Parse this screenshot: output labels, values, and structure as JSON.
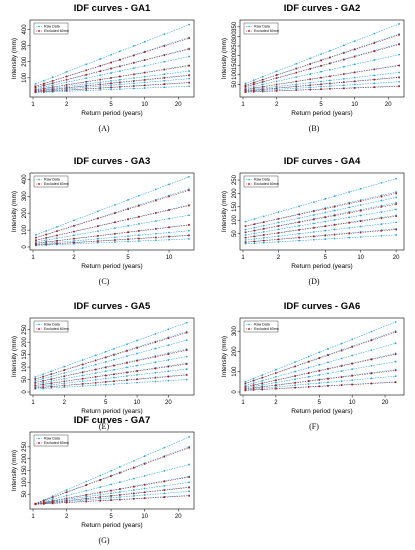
{
  "colors": {
    "raw": "#29a3e0",
    "excluded": "#b01818",
    "frame": "#000000"
  },
  "legend": [
    "Raw Data",
    "Excluded 60mn"
  ],
  "chart_data": [
    {
      "type": "line",
      "title": "IDF curves - GA1",
      "caption": "(A)",
      "xlabel": "Return period (years)",
      "ylabel": "Intensity (mm)",
      "x_scale": "log",
      "xlim": [
        1,
        26
      ],
      "ylim": [
        0,
        440
      ],
      "x_ticks": [
        1,
        2,
        5,
        10,
        20
      ],
      "y_ticks": [
        100,
        200,
        300,
        400
      ],
      "x": [
        1.05,
        1.25,
        1.5,
        2,
        3,
        4,
        5,
        6,
        8,
        10,
        15,
        25
      ],
      "series": [
        {
          "name": "Raw Data",
          "start": 62,
          "end": 430
        },
        {
          "name": "Raw Data",
          "start": 48,
          "end": 350
        },
        {
          "name": "Raw Data",
          "start": 40,
          "end": 282
        },
        {
          "name": "Raw Data",
          "start": 32,
          "end": 232
        },
        {
          "name": "Raw Data",
          "start": 26,
          "end": 178
        },
        {
          "name": "Raw Data",
          "start": 22,
          "end": 142
        },
        {
          "name": "Raw Data",
          "start": 18,
          "end": 118
        },
        {
          "name": "Raw Data",
          "start": 15,
          "end": 95
        },
        {
          "name": "Raw Data",
          "start": 12,
          "end": 72
        },
        {
          "name": "Raw Data",
          "start": 9,
          "end": 48
        },
        {
          "name": "Excluded 60mn",
          "start": 48,
          "end": 345
        },
        {
          "name": "Excluded 60mn",
          "start": 40,
          "end": 278
        },
        {
          "name": "Excluded 60mn",
          "start": 26,
          "end": 175
        },
        {
          "name": "Excluded 60mn",
          "start": 18,
          "end": 115
        },
        {
          "name": "Excluded 60mn",
          "start": 12,
          "end": 70
        }
      ]
    },
    {
      "type": "line",
      "title": "IDF curves - GA2",
      "caption": "(B)",
      "xlabel": "Return period (years)",
      "ylabel": "Intensity (mm)",
      "x_scale": "log",
      "xlim": [
        1,
        26
      ],
      "ylim": [
        0,
        370
      ],
      "x_ticks": [
        1,
        2,
        5,
        10,
        20
      ],
      "y_ticks": [
        50,
        100,
        150,
        200,
        250,
        300,
        350
      ],
      "x": [
        1.05,
        1.25,
        1.5,
        2,
        3,
        4,
        5,
        6,
        8,
        10,
        15,
        25
      ],
      "series": [
        {
          "name": "Raw Data",
          "start": 55,
          "end": 365
        },
        {
          "name": "Raw Data",
          "start": 45,
          "end": 312
        },
        {
          "name": "Raw Data",
          "start": 38,
          "end": 262
        },
        {
          "name": "Raw Data",
          "start": 30,
          "end": 205
        },
        {
          "name": "Raw Data",
          "start": 24,
          "end": 150
        },
        {
          "name": "Raw Data",
          "start": 20,
          "end": 112
        },
        {
          "name": "Raw Data",
          "start": 16,
          "end": 88
        },
        {
          "name": "Raw Data",
          "start": 13,
          "end": 64
        },
        {
          "name": "Raw Data",
          "start": 10,
          "end": 42
        },
        {
          "name": "Excluded 60mn",
          "start": 45,
          "end": 308
        },
        {
          "name": "Excluded 60mn",
          "start": 38,
          "end": 258
        },
        {
          "name": "Excluded 60mn",
          "start": 24,
          "end": 148
        },
        {
          "name": "Excluded 60mn",
          "start": 16,
          "end": 86
        },
        {
          "name": "Excluded 60mn",
          "start": 10,
          "end": 40
        }
      ]
    },
    {
      "type": "line",
      "title": "IDF curves - GA3",
      "caption": "(C)",
      "xlabel": "Return period (years)",
      "ylabel": "Intensity (mm)",
      "x_scale": "log",
      "xlim": [
        1,
        14.5
      ],
      "ylim": [
        0,
        420
      ],
      "x_ticks": [
        1,
        2,
        5,
        10
      ],
      "y_ticks": [
        0,
        100,
        200,
        300,
        400
      ],
      "x": [
        1.05,
        1.25,
        1.5,
        2,
        3,
        4,
        5,
        6,
        8,
        10,
        14
      ],
      "series": [
        {
          "name": "Raw Data",
          "start": 72,
          "end": 415
        },
        {
          "name": "Raw Data",
          "start": 55,
          "end": 342
        },
        {
          "name": "Raw Data",
          "start": 40,
          "end": 248
        },
        {
          "name": "Raw Data",
          "start": 30,
          "end": 188
        },
        {
          "name": "Raw Data",
          "start": 22,
          "end": 132
        },
        {
          "name": "Raw Data",
          "start": 16,
          "end": 96
        },
        {
          "name": "Raw Data",
          "start": 12,
          "end": 70
        },
        {
          "name": "Raw Data",
          "start": 9,
          "end": 48
        },
        {
          "name": "Excluded 60mn",
          "start": 55,
          "end": 335
        },
        {
          "name": "Excluded 60mn",
          "start": 40,
          "end": 245
        },
        {
          "name": "Excluded 60mn",
          "start": 22,
          "end": 130
        },
        {
          "name": "Excluded 60mn",
          "start": 12,
          "end": 68
        }
      ]
    },
    {
      "type": "line",
      "title": "IDF curves - GA4",
      "caption": "(D)",
      "xlabel": "Return period (years)",
      "ylabel": "Intensity (mm)",
      "x_scale": "log",
      "xlim": [
        1,
        22
      ],
      "ylim": [
        0,
        265
      ],
      "x_ticks": [
        1,
        2,
        5,
        10,
        20
      ],
      "y_ticks": [
        50,
        100,
        150,
        200,
        250
      ],
      "x": [
        1.05,
        1.25,
        1.5,
        2,
        3,
        4,
        5,
        6,
        8,
        10,
        15,
        20
      ],
      "series": [
        {
          "name": "Raw Data",
          "start": 95,
          "end": 255
        },
        {
          "name": "Raw Data",
          "start": 78,
          "end": 205
        },
        {
          "name": "Raw Data",
          "start": 65,
          "end": 185
        },
        {
          "name": "Raw Data",
          "start": 55,
          "end": 165
        },
        {
          "name": "Raw Data",
          "start": 45,
          "end": 140
        },
        {
          "name": "Raw Data",
          "start": 35,
          "end": 118
        },
        {
          "name": "Raw Data",
          "start": 26,
          "end": 92
        },
        {
          "name": "Raw Data",
          "start": 18,
          "end": 68
        },
        {
          "name": "Raw Data",
          "start": 12,
          "end": 45
        },
        {
          "name": "Excluded 60mn",
          "start": 78,
          "end": 200
        },
        {
          "name": "Excluded 60mn",
          "start": 55,
          "end": 160
        },
        {
          "name": "Excluded 60mn",
          "start": 35,
          "end": 115
        },
        {
          "name": "Excluded 60mn",
          "start": 18,
          "end": 65
        }
      ]
    },
    {
      "type": "line",
      "title": "IDF curves - GA5",
      "caption": "(E)",
      "xlabel": "Return period (years)",
      "ylabel": "Intensity (mm)",
      "x_scale": "log",
      "xlim": [
        1,
        33
      ],
      "ylim": [
        0,
        285
      ],
      "x_ticks": [
        1,
        2,
        5,
        10,
        20
      ],
      "y_ticks": [
        0,
        50,
        100,
        150,
        200,
        250
      ],
      "x": [
        1.05,
        1.25,
        1.5,
        2,
        3,
        4,
        5,
        6,
        8,
        10,
        15,
        20,
        30
      ],
      "series": [
        {
          "name": "Raw Data",
          "start": 60,
          "end": 278
        },
        {
          "name": "Raw Data",
          "start": 52,
          "end": 242
        },
        {
          "name": "Raw Data",
          "start": 45,
          "end": 208
        },
        {
          "name": "Raw Data",
          "start": 38,
          "end": 172
        },
        {
          "name": "Raw Data",
          "start": 32,
          "end": 142
        },
        {
          "name": "Raw Data",
          "start": 26,
          "end": 115
        },
        {
          "name": "Raw Data",
          "start": 21,
          "end": 92
        },
        {
          "name": "Raw Data",
          "start": 16,
          "end": 70
        },
        {
          "name": "Raw Data",
          "start": 12,
          "end": 50
        },
        {
          "name": "Excluded 60mn",
          "start": 52,
          "end": 238
        },
        {
          "name": "Excluded 60mn",
          "start": 38,
          "end": 168
        },
        {
          "name": "Excluded 60mn",
          "start": 26,
          "end": 112
        },
        {
          "name": "Excluded 60mn",
          "start": 16,
          "end": 68
        }
      ]
    },
    {
      "type": "line",
      "title": "IDF curves - GA6",
      "caption": "(F)",
      "xlabel": "Return period (years)",
      "ylabel": "Intensity (mm)",
      "x_scale": "log",
      "xlim": [
        1,
        28
      ],
      "ylim": [
        0,
        350
      ],
      "x_ticks": [
        1,
        2,
        5,
        10,
        20
      ],
      "y_ticks": [
        0,
        100,
        200,
        300
      ],
      "x": [
        1.05,
        1.25,
        1.5,
        2,
        3,
        4,
        5,
        6,
        8,
        10,
        15,
        25
      ],
      "series": [
        {
          "name": "Raw Data",
          "start": 50,
          "end": 345
        },
        {
          "name": "Raw Data",
          "start": 42,
          "end": 300
        },
        {
          "name": "Raw Data",
          "start": 32,
          "end": 240
        },
        {
          "name": "Raw Data",
          "start": 25,
          "end": 190
        },
        {
          "name": "Raw Data",
          "start": 20,
          "end": 150
        },
        {
          "name": "Raw Data",
          "start": 15,
          "end": 110
        },
        {
          "name": "Raw Data",
          "start": 11,
          "end": 78
        },
        {
          "name": "Raw Data",
          "start": 8,
          "end": 50
        },
        {
          "name": "Excluded 60mn",
          "start": 42,
          "end": 295
        },
        {
          "name": "Excluded 60mn",
          "start": 25,
          "end": 186
        },
        {
          "name": "Excluded 60mn",
          "start": 15,
          "end": 106
        },
        {
          "name": "Excluded 60mn",
          "start": 8,
          "end": 48
        }
      ]
    },
    {
      "type": "line",
      "title": "IDF curves - GA7",
      "caption": "(G)",
      "xlabel": "Return period (years)",
      "ylabel": "Intensity (mm)",
      "x_scale": "log",
      "xlim": [
        1,
        26
      ],
      "ylim": [
        0,
        300
      ],
      "x_ticks": [
        1,
        2,
        5,
        10,
        20
      ],
      "y_ticks": [
        50,
        100,
        150,
        200,
        250
      ],
      "x": [
        1.05,
        1.25,
        1.5,
        2,
        3,
        4,
        5,
        6,
        8,
        10,
        15,
        25
      ],
      "series": [
        {
          "name": "Raw Data",
          "start": 10,
          "end": 292
        },
        {
          "name": "Raw Data",
          "start": 10,
          "end": 250
        },
        {
          "name": "Raw Data",
          "start": 10,
          "end": 175
        },
        {
          "name": "Raw Data",
          "start": 9,
          "end": 125
        },
        {
          "name": "Raw Data",
          "start": 9,
          "end": 100
        },
        {
          "name": "Raw Data",
          "start": 8,
          "end": 80
        },
        {
          "name": "Raw Data",
          "start": 8,
          "end": 62
        },
        {
          "name": "Raw Data",
          "start": 7,
          "end": 45
        },
        {
          "name": "Excluded 60mn",
          "start": 10,
          "end": 246
        },
        {
          "name": "Excluded 60mn",
          "start": 9,
          "end": 122
        },
        {
          "name": "Excluded 60mn",
          "start": 8,
          "end": 78
        },
        {
          "name": "Excluded 60mn",
          "start": 7,
          "end": 43
        }
      ]
    }
  ]
}
